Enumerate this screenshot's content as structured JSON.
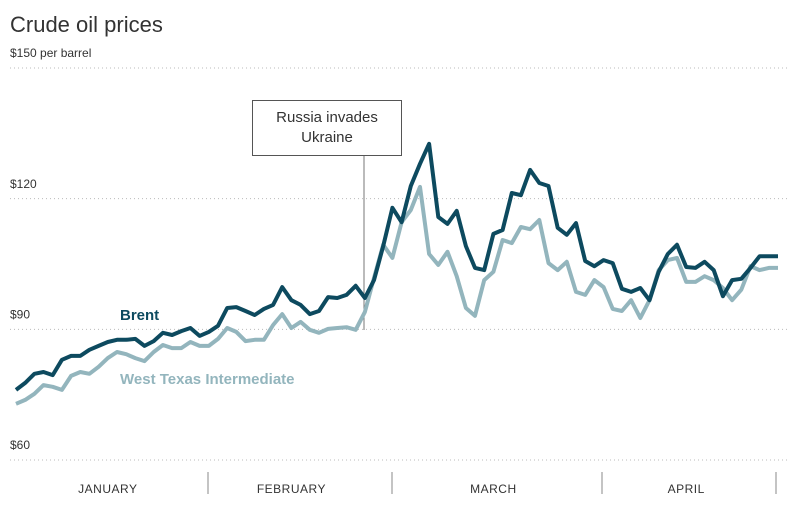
{
  "chart_data": {
    "type": "line",
    "title": "Crude oil prices",
    "annotation": "Russia invades Ukraine",
    "categories": [
      null,
      null,
      null,
      null,
      null,
      null,
      null,
      null,
      null,
      null,
      "JANUARY",
      null,
      null,
      null,
      null,
      null,
      null,
      null,
      null,
      null,
      null,
      null,
      null,
      null,
      null,
      null,
      null,
      null,
      null,
      null,
      "FEBRUARY",
      null,
      null,
      null,
      null,
      null,
      null,
      null,
      null,
      null,
      null,
      null,
      null,
      null,
      null,
      null,
      null,
      null,
      null,
      null,
      null,
      null,
      "MARCH",
      null,
      null,
      null,
      null,
      null,
      null,
      null,
      null,
      null,
      null,
      null,
      null,
      null,
      null,
      null,
      null,
      null,
      null,
      null,
      null,
      "APRIL",
      null,
      null,
      null,
      null,
      null,
      null,
      null,
      null,
      null,
      null
    ],
    "series": [
      {
        "name": "Brent",
        "color": "#0d4a5f",
        "values": [
          76.1,
          77.7,
          79.8,
          80.2,
          79.5,
          83.0,
          83.9,
          83.9,
          85.3,
          86.2,
          87.1,
          87.6,
          87.6,
          87.8,
          86.2,
          87.3,
          89.2,
          88.7,
          89.6,
          90.3,
          88.5,
          89.4,
          90.8,
          94.9,
          95.1,
          94.2,
          93.3,
          94.7,
          95.6,
          99.7,
          96.7,
          95.6,
          93.5,
          94.2,
          97.4,
          97.2,
          97.9,
          100.0,
          97.2,
          101.3,
          109.1,
          117.9,
          114.6,
          122.9,
          128.0,
          132.6,
          115.8,
          114.2,
          117.2,
          109.1,
          104.1,
          103.6,
          111.9,
          112.8,
          121.3,
          120.8,
          126.6,
          123.6,
          122.9,
          113.3,
          111.7,
          114.4,
          105.7,
          104.5,
          105.9,
          105.2,
          99.3,
          98.6,
          99.5,
          96.7,
          103.2,
          107.3,
          109.4,
          104.3,
          104.1,
          105.5,
          103.6,
          97.6,
          101.3,
          101.6,
          104.1,
          106.8,
          106.8,
          106.8
        ]
      },
      {
        "name": "West Texas Intermediate",
        "color": "#93b5bd",
        "values": [
          72.9,
          73.8,
          75.2,
          77.2,
          76.8,
          76.1,
          79.3,
          80.2,
          79.8,
          81.4,
          83.4,
          84.8,
          84.3,
          83.4,
          82.7,
          84.8,
          86.4,
          85.7,
          85.7,
          87.1,
          86.2,
          86.2,
          87.8,
          90.3,
          89.4,
          87.3,
          87.6,
          87.6,
          91.0,
          93.5,
          90.3,
          91.7,
          89.9,
          89.2,
          90.1,
          90.3,
          90.5,
          89.9,
          94.0,
          101.8,
          109.4,
          106.4,
          114.6,
          117.4,
          122.7,
          107.3,
          104.8,
          107.8,
          102.2,
          94.9,
          93.1,
          101.3,
          103.2,
          110.5,
          109.8,
          113.5,
          113.0,
          115.1,
          105.2,
          103.6,
          105.5,
          98.6,
          97.9,
          101.3,
          99.7,
          94.7,
          94.2,
          96.7,
          92.6,
          96.7,
          103.6,
          105.9,
          106.4,
          100.9,
          100.9,
          102.2,
          101.3,
          99.5,
          96.7,
          99.1,
          104.5,
          103.6,
          104.1,
          104.1
        ]
      }
    ],
    "ylim": [
      60,
      150
    ],
    "yticks": [
      {
        "value": 60,
        "label": "$60"
      },
      {
        "value": 90,
        "label": "$90"
      },
      {
        "value": 120,
        "label": "$120"
      },
      {
        "value": 150,
        "label": "$150 per barrel"
      }
    ],
    "grid": true
  }
}
